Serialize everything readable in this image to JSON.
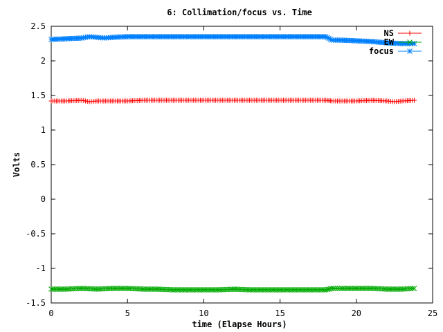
{
  "chart_data": {
    "type": "line",
    "title": "6: Collimation/focus vs. Time",
    "xlabel": "time (Elapse Hours)",
    "ylabel": "Volts",
    "xlim": [
      0,
      25
    ],
    "ylim": [
      -1.5,
      2.5
    ],
    "xticks": [
      "0",
      "5",
      "10",
      "15",
      "20",
      "25"
    ],
    "yticks": [
      "-1.5",
      "-1",
      "-0.5",
      "0",
      "0.5",
      "1",
      "1.5",
      "2",
      "2.5"
    ],
    "grid": false,
    "legend_position": "top-right",
    "series": [
      {
        "name": "NS",
        "color": "#ff0000",
        "marker": "plus",
        "x": [
          0,
          1,
          2,
          2.5,
          3,
          4,
          5,
          6,
          7,
          8,
          9,
          10,
          11,
          12,
          13,
          14,
          15,
          16,
          17,
          18,
          18.4,
          19,
          20,
          21,
          22,
          22.5,
          23,
          23.8
        ],
        "y": [
          1.42,
          1.42,
          1.43,
          1.41,
          1.42,
          1.42,
          1.42,
          1.43,
          1.43,
          1.43,
          1.43,
          1.43,
          1.43,
          1.43,
          1.43,
          1.43,
          1.43,
          1.43,
          1.43,
          1.43,
          1.42,
          1.42,
          1.42,
          1.43,
          1.42,
          1.41,
          1.42,
          1.43
        ]
      },
      {
        "name": "EW",
        "color": "#00aa00",
        "marker": "x",
        "x": [
          0,
          1,
          2,
          3,
          4,
          5,
          6,
          7,
          8,
          9,
          10,
          11,
          12,
          13,
          14,
          15,
          16,
          17,
          18,
          18.4,
          19,
          20,
          21,
          22,
          23,
          23.8
        ],
        "y": [
          -1.3,
          -1.3,
          -1.29,
          -1.3,
          -1.29,
          -1.29,
          -1.3,
          -1.3,
          -1.31,
          -1.31,
          -1.31,
          -1.31,
          -1.3,
          -1.31,
          -1.31,
          -1.31,
          -1.31,
          -1.31,
          -1.31,
          -1.29,
          -1.29,
          -1.29,
          -1.29,
          -1.3,
          -1.3,
          -1.29
        ]
      },
      {
        "name": "focus",
        "color": "#0080ff",
        "marker": "star",
        "x": [
          0,
          1,
          2,
          2.5,
          3,
          3.5,
          4,
          5,
          6,
          7,
          8,
          9,
          10,
          11,
          12,
          13,
          14,
          15,
          16,
          17,
          18,
          18.4,
          19,
          20,
          21,
          22,
          23,
          23.8
        ],
        "y": [
          2.31,
          2.32,
          2.33,
          2.35,
          2.34,
          2.33,
          2.34,
          2.35,
          2.35,
          2.35,
          2.35,
          2.35,
          2.35,
          2.35,
          2.35,
          2.35,
          2.35,
          2.35,
          2.35,
          2.35,
          2.35,
          2.3,
          2.3,
          2.29,
          2.28,
          2.26,
          2.25,
          2.25
        ]
      }
    ]
  }
}
